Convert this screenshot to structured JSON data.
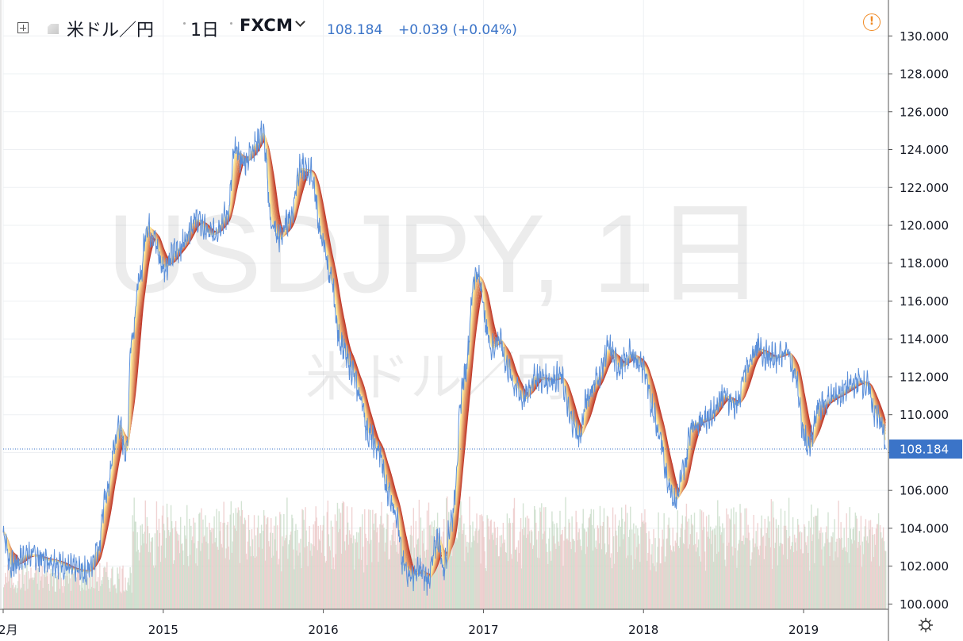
{
  "header": {
    "symbol": "米ドル／円",
    "interval": "1日",
    "exchange": "FXCM",
    "price": "108.184",
    "change": "+0.039 (+0.04%)",
    "warning_glyph": "!"
  },
  "watermark": {
    "main": "USDJPY, 1日",
    "sub": "米ドル／円"
  },
  "colors": {
    "price_line": "#5b8fd9",
    "price_label_bg": "#3b74c8",
    "ribbon_light": "#fde89a",
    "ribbon_dark": "#c0392b",
    "volume_up": "#c8dcc8",
    "volume_down": "#ecc8c8",
    "grid": "#eef0f3",
    "warning": "#f08a24"
  },
  "icons": [
    "expand-icon",
    "symbol-icon",
    "chevron-down-icon",
    "warning-icon",
    "gear-icon"
  ],
  "chart_data": {
    "type": "line",
    "grid": true,
    "y_axis_side": "right",
    "ylim": [
      98.3,
      130.6
    ],
    "y_ticks": [
      "130.000",
      "128.000",
      "126.000",
      "124.000",
      "122.000",
      "120.000",
      "118.000",
      "116.000",
      "114.000",
      "112.000",
      "110.000",
      "108.000",
      "106.000",
      "104.000",
      "102.000",
      "100.000"
    ],
    "x_ticks": [
      "2月",
      "2015",
      "2016",
      "2017",
      "2018",
      "2019"
    ],
    "x_tick_t": [
      0.0,
      1.0,
      2.0,
      3.0,
      4.0,
      5.0
    ],
    "t_range": [
      0.0,
      5.53
    ],
    "last_price_label": "108.184",
    "last_price": 108.184,
    "ribbon": {
      "count": 8,
      "description": "ribbon of moving averages from light yellow (fastest) to dark red (slowest)"
    },
    "series": [
      {
        "price_points": [
          [
            0.0,
            103.8
          ],
          [
            0.05,
            102.0
          ],
          [
            0.15,
            102.6
          ],
          [
            0.3,
            102.3
          ],
          [
            0.45,
            101.8
          ],
          [
            0.52,
            101.7
          ],
          [
            0.6,
            103.0
          ],
          [
            0.62,
            104.8
          ],
          [
            0.65,
            106.0
          ],
          [
            0.7,
            108.5
          ],
          [
            0.72,
            109.5
          ],
          [
            0.77,
            108.0
          ],
          [
            0.8,
            114.0
          ],
          [
            0.85,
            117.0
          ],
          [
            0.9,
            120.0
          ],
          [
            0.93,
            119.5
          ],
          [
            1.0,
            117.8
          ],
          [
            1.1,
            118.8
          ],
          [
            1.2,
            120.3
          ],
          [
            1.3,
            119.5
          ],
          [
            1.4,
            120.5
          ],
          [
            1.45,
            124.0
          ],
          [
            1.5,
            123.3
          ],
          [
            1.58,
            124.3
          ],
          [
            1.62,
            124.9
          ],
          [
            1.68,
            120.0
          ],
          [
            1.72,
            119.3
          ],
          [
            1.8,
            120.5
          ],
          [
            1.85,
            123.0
          ],
          [
            1.92,
            122.8
          ],
          [
            2.0,
            119.0
          ],
          [
            2.05,
            117.0
          ],
          [
            2.1,
            114.0
          ],
          [
            2.17,
            112.5
          ],
          [
            2.23,
            111.0
          ],
          [
            2.28,
            109.0
          ],
          [
            2.35,
            108.0
          ],
          [
            2.4,
            106.0
          ],
          [
            2.45,
            105.0
          ],
          [
            2.5,
            102.0
          ],
          [
            2.55,
            101.5
          ],
          [
            2.6,
            101.8
          ],
          [
            2.65,
            101.3
          ],
          [
            2.72,
            103.5
          ],
          [
            2.75,
            101.8
          ],
          [
            2.8,
            104.5
          ],
          [
            2.88,
            112.0
          ],
          [
            2.95,
            117.5
          ],
          [
            2.98,
            117.0
          ],
          [
            3.02,
            114.5
          ],
          [
            3.05,
            113.5
          ],
          [
            3.1,
            114.0
          ],
          [
            3.15,
            112.5
          ],
          [
            3.2,
            111.5
          ],
          [
            3.25,
            110.8
          ],
          [
            3.32,
            112.0
          ],
          [
            3.4,
            111.8
          ],
          [
            3.48,
            112.0
          ],
          [
            3.55,
            109.7
          ],
          [
            3.6,
            108.8
          ],
          [
            3.65,
            111.0
          ],
          [
            3.72,
            112.0
          ],
          [
            3.78,
            113.5
          ],
          [
            3.85,
            112.5
          ],
          [
            3.92,
            113.2
          ],
          [
            4.0,
            112.5
          ],
          [
            4.05,
            110.5
          ],
          [
            4.1,
            109.0
          ],
          [
            4.15,
            106.5
          ],
          [
            4.2,
            105.5
          ],
          [
            4.25,
            107.0
          ],
          [
            4.3,
            109.5
          ],
          [
            4.4,
            109.8
          ],
          [
            4.5,
            111.0
          ],
          [
            4.58,
            110.5
          ],
          [
            4.65,
            112.5
          ],
          [
            4.7,
            113.5
          ],
          [
            4.8,
            113.0
          ],
          [
            4.9,
            113.3
          ],
          [
            4.95,
            112.0
          ],
          [
            5.0,
            109.0
          ],
          [
            5.03,
            108.2
          ],
          [
            5.1,
            110.5
          ],
          [
            5.2,
            111.0
          ],
          [
            5.3,
            111.5
          ],
          [
            5.35,
            111.8
          ],
          [
            5.4,
            111.5
          ],
          [
            5.45,
            110.0
          ],
          [
            5.49,
            109.5
          ],
          [
            5.51,
            108.184
          ]
        ]
      }
    ]
  }
}
